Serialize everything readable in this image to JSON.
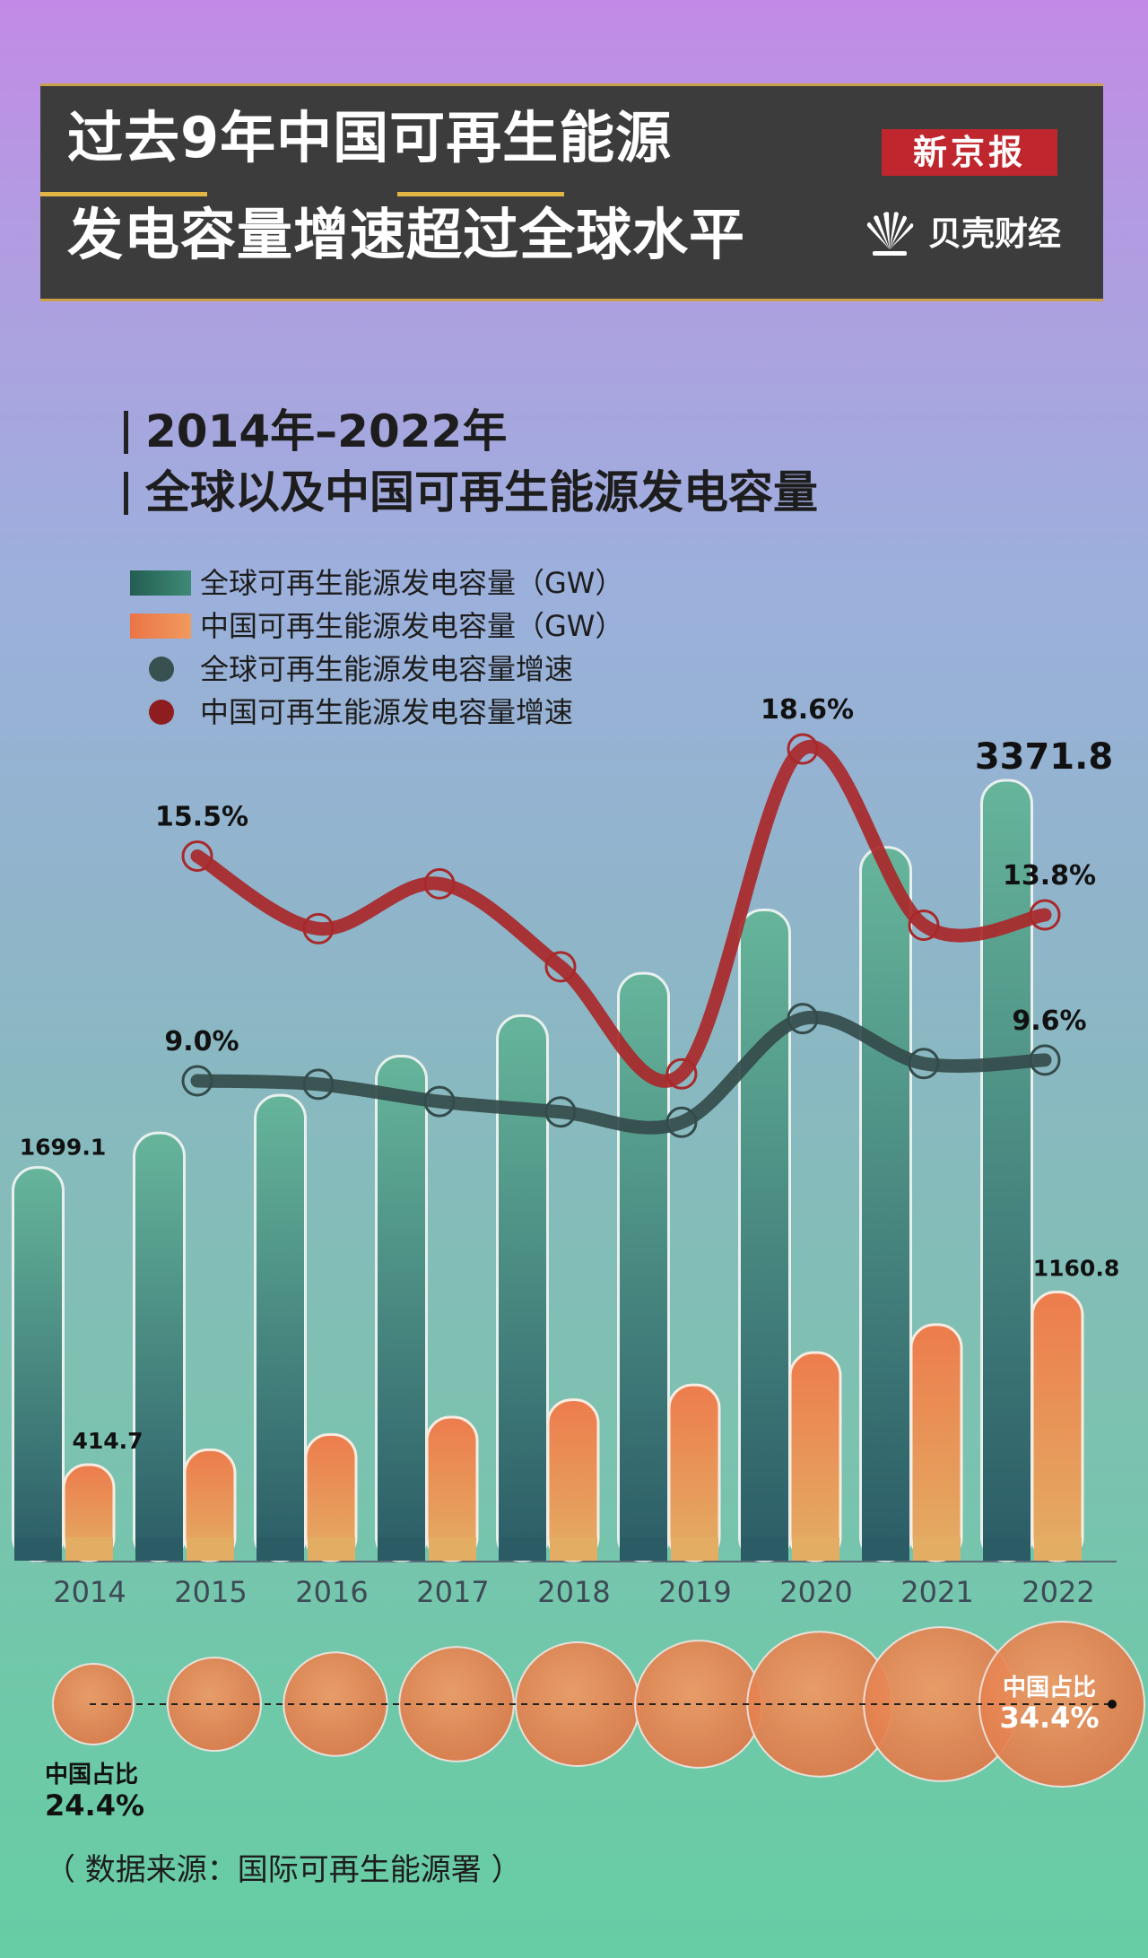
{
  "header": {
    "title_line1": "过去9年中国可再生能源",
    "title_line2": "发电容量增速超过全球水平",
    "brand": "新京报",
    "brand_sub": "贝壳财经"
  },
  "subtitle": {
    "line1": "2014年–2022年",
    "line2": "全球以及中国可再生能源发电容量"
  },
  "legend": [
    {
      "label": "全球可再生能源发电容量（GW）",
      "color": "#2e6f60",
      "kind": "bar"
    },
    {
      "label": "中国可再生能源发电容量（GW）",
      "color": "#ee8550",
      "kind": "bar"
    },
    {
      "label": "全球可再生能源发电容量增速",
      "color": "#38504f",
      "kind": "dot"
    },
    {
      "label": "中国可再生能源发电容量增速",
      "color": "#8e1d1f",
      "kind": "dot"
    }
  ],
  "chart_data": {
    "type": "bar",
    "categories": [
      "2014",
      "2015",
      "2016",
      "2017",
      "2018",
      "2019",
      "2020",
      "2021",
      "2022"
    ],
    "series": [
      {
        "name": "全球可再生能源发电容量（GW）",
        "kind": "bar",
        "values": [
          1699.1,
          1848,
          2011,
          2180,
          2355,
          2538,
          2812,
          3082,
          3371.8
        ],
        "labels": [
          "1699.1",
          "",
          "",
          "",
          "",
          "",
          "",
          "",
          "3371.8"
        ]
      },
      {
        "name": "中国可再生能源发电容量（GW）",
        "kind": "bar",
        "values": [
          414.7,
          479,
          545,
          620,
          695,
          759,
          899,
          1020,
          1160.8
        ],
        "labels": [
          "414.7",
          "",
          "",
          "",
          "",
          "",
          "",
          "",
          "1160.8"
        ]
      },
      {
        "name": "全球可再生能源发电容量增速",
        "kind": "line",
        "values": [
          null,
          9.0,
          8.9,
          8.4,
          8.1,
          7.8,
          10.8,
          9.5,
          9.6
        ],
        "labels": [
          "",
          "9.0%",
          "",
          "",
          "",
          "",
          "",
          "",
          "9.6%"
        ]
      },
      {
        "name": "中国可再生能源发电容量增速",
        "kind": "line",
        "values": [
          null,
          15.5,
          13.4,
          14.7,
          12.3,
          9.2,
          18.6,
          13.5,
          13.8
        ],
        "labels": [
          "",
          "15.5%",
          "",
          "",
          "",
          "",
          "18.6%",
          "",
          "13.8%"
        ]
      }
    ],
    "china_share": {
      "name": "中国占比",
      "values": [
        24.4,
        25.9,
        27.1,
        28.4,
        29.5,
        29.9,
        32.0,
        33.1,
        34.4
      ],
      "labels": [
        "24.4%",
        "",
        "",
        "",
        "",
        "",
        "",
        "",
        "34.4%"
      ]
    }
  },
  "source": "（ 数据来源：国际可再生能源署 ）"
}
